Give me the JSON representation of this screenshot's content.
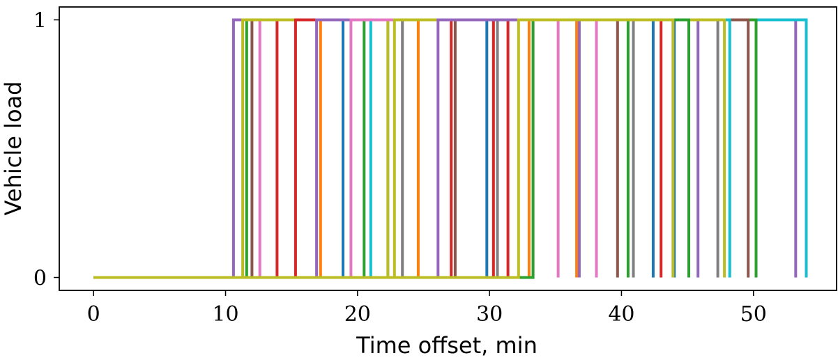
{
  "chart_data": {
    "type": "line",
    "step": "post",
    "xlabel": "Time offset, min",
    "ylabel": "Vehicle load",
    "xlim": [
      -2.6,
      56.3
    ],
    "ylim": [
      -0.05,
      1.05
    ],
    "x_ticks": [
      0,
      10,
      20,
      30,
      40,
      50
    ],
    "y_ticks": [
      0,
      1
    ],
    "x_tick_labels": [
      "0",
      "10",
      "20",
      "30",
      "40",
      "50"
    ],
    "y_tick_labels": [
      "0",
      "1"
    ],
    "grid": false,
    "legend": "none",
    "series": [
      {
        "color": "#9467bd",
        "x": [
          0,
          10.6,
          53.2
        ],
        "y": [
          0,
          1,
          0
        ]
      },
      {
        "color": "#17becf",
        "x": [
          0,
          22.3,
          54.0
        ],
        "y": [
          0,
          1,
          0
        ]
      },
      {
        "color": "#2ca02c",
        "x": [
          0,
          11.6,
          50.2
        ],
        "y": [
          0,
          1,
          0
        ]
      },
      {
        "color": "#8c564b",
        "x": [
          0,
          12.0,
          49.6
        ],
        "y": [
          0,
          1,
          0
        ]
      },
      {
        "color": "#d62728",
        "x": [
          0,
          13.9,
          43.0
        ],
        "y": [
          0,
          1,
          0
        ]
      },
      {
        "color": "#ff7f0e",
        "x": [
          0,
          17.2,
          36.6
        ],
        "y": [
          0,
          1,
          0
        ]
      },
      {
        "color": "#1f77b4",
        "x": [
          0,
          18.9,
          44.0
        ],
        "y": [
          0,
          1,
          0
        ]
      },
      {
        "color": "#e377c2",
        "x": [
          0,
          12.6,
          38.1
        ],
        "y": [
          0,
          1,
          0
        ]
      },
      {
        "color": "#7f7f7f",
        "x": [
          0,
          23.4,
          47.3
        ],
        "y": [
          0,
          1,
          0
        ]
      },
      {
        "color": "#bcbd22",
        "x": [
          0,
          11.3,
          22.3
        ],
        "y": [
          0,
          1,
          0
        ]
      },
      {
        "color": "#d62728",
        "x": [
          0,
          15.3,
          31.4
        ],
        "y": [
          0,
          1,
          0
        ]
      },
      {
        "color": "#2ca02c",
        "x": [
          0,
          20.5,
          40.5
        ],
        "y": [
          0,
          1,
          0
        ]
      },
      {
        "color": "#ff7f0e",
        "x": [
          0,
          24.6,
          33.0
        ],
        "y": [
          0,
          1,
          0
        ]
      },
      {
        "color": "#9467bd",
        "x": [
          0,
          16.9,
          45.8
        ],
        "y": [
          0,
          1,
          0
        ]
      },
      {
        "color": "#8c564b",
        "x": [
          0,
          27.4,
          39.7
        ],
        "y": [
          0,
          1,
          0
        ]
      },
      {
        "color": "#17becf",
        "x": [
          0,
          21.0,
          48.2
        ],
        "y": [
          0,
          1,
          0
        ]
      },
      {
        "color": "#1f77b4",
        "x": [
          0,
          29.8,
          42.4
        ],
        "y": [
          0,
          1,
          0
        ]
      },
      {
        "color": "#e377c2",
        "x": [
          0,
          19.5,
          35.2
        ],
        "y": [
          0,
          1,
          0
        ]
      },
      {
        "color": "#7f7f7f",
        "x": [
          0,
          30.6,
          40.9
        ],
        "y": [
          0,
          1,
          0
        ]
      },
      {
        "color": "#bcbd22",
        "x": [
          0,
          22.8,
          47.8
        ],
        "y": [
          0,
          1,
          0
        ]
      },
      {
        "color": "#d62728",
        "x": [
          0,
          27.1,
          30.3
        ],
        "y": [
          0,
          1,
          0
        ]
      },
      {
        "color": "#2ca02c",
        "x": [
          0,
          33.3,
          45.1
        ],
        "y": [
          0,
          1,
          0
        ]
      },
      {
        "color": "#9467bd",
        "x": [
          0,
          26.1,
          36.8
        ],
        "y": [
          0,
          1,
          0
        ]
      },
      {
        "color": "#bcbd22",
        "x": [
          0,
          32.2,
          43.9
        ],
        "y": [
          0,
          1,
          0
        ]
      }
    ]
  }
}
